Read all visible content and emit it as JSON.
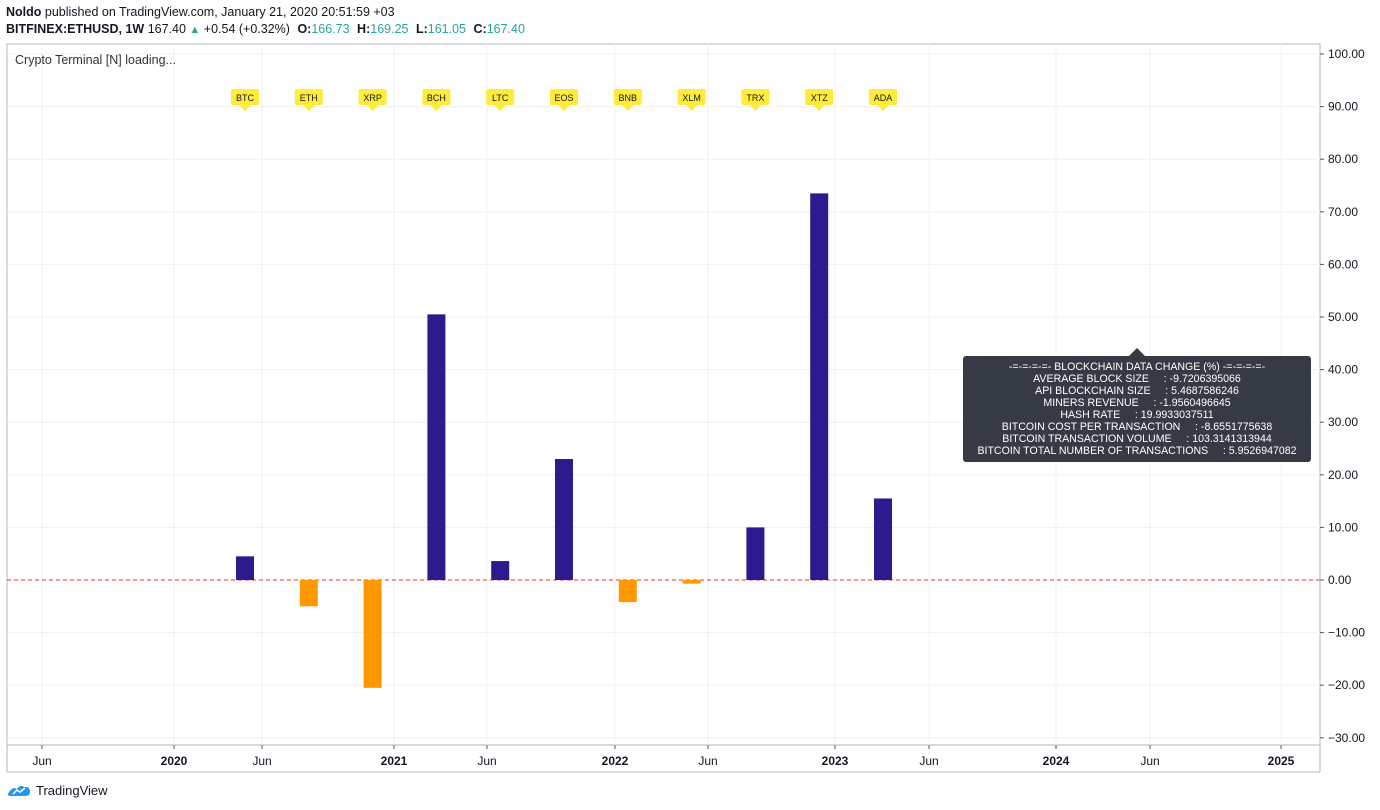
{
  "header": {
    "author": "Noldo",
    "published": " published on TradingView.com, January 21, 2020 20:51:59 +03",
    "symbol": "BITFINEX:ETHUSD, 1W",
    "price": "167.40",
    "change": "+0.54 (+0.32%)",
    "o_label": "O:",
    "o": "166.73",
    "h_label": "H:",
    "h": "169.25",
    "l_label": "L:",
    "l": "161.05",
    "c_label": "C:",
    "c": "167.40"
  },
  "indicator_name": "Crypto Terminal [N] loading...",
  "tooltip": {
    "lines": [
      "-=-=-=-=- BLOCKCHAIN DATA CHANGE (%) -=-=-=-=-",
      "AVERAGE BLOCK SIZE     : -9.7206395066",
      "API BLOCKCHAIN SIZE     : 5.4687586246",
      "MINERS REVENUE     : -1.9560496645",
      "HASH RATE     : 19.9933037511",
      "BITCOIN COST PER TRANSACTION     : -8.6551775638",
      "BITCOIN TRANSACTION VOLUME     : 103.3141313944",
      "BITCOIN TOTAL NUMBER OF TRANSACTIONS     : 5.9526947082"
    ]
  },
  "footer": {
    "brand": "TradingView"
  },
  "colors": {
    "positive": "#2e1a8f",
    "negative": "#ff9800",
    "label_bg": "#ffeb3b",
    "zero_line": "#e53935",
    "grid": "#eef0f3",
    "axis": "#555555"
  },
  "chart_data": {
    "type": "bar",
    "categories": [
      "BTC",
      "ETH",
      "XRP",
      "BCH",
      "LTC",
      "EOS",
      "BNB",
      "XLM",
      "TRX",
      "XTZ",
      "ADA"
    ],
    "values": [
      4.5,
      -5.0,
      -20.5,
      50.5,
      3.6,
      23.0,
      -4.2,
      -0.7,
      10.0,
      73.5,
      15.5
    ],
    "ylim": [
      -30,
      100
    ],
    "yticks": [
      "100.00",
      "90.00",
      "80.00",
      "70.00",
      "60.00",
      "50.00",
      "40.00",
      "30.00",
      "20.00",
      "10.00",
      "0.00",
      "−10.00",
      "−20.00",
      "−30.00"
    ],
    "ytick_values": [
      100,
      90,
      80,
      70,
      60,
      50,
      40,
      30,
      20,
      10,
      0,
      -10,
      -20,
      -30
    ],
    "xticks": [
      "Jun",
      "2020",
      "Jun",
      "2021",
      "Jun",
      "2022",
      "Jun",
      "2023",
      "Jun",
      "2024",
      "Jun",
      "2025"
    ],
    "xtick_bold": [
      false,
      true,
      false,
      true,
      false,
      true,
      false,
      true,
      false,
      true,
      false,
      true
    ],
    "grid": true,
    "zero_line": true
  }
}
